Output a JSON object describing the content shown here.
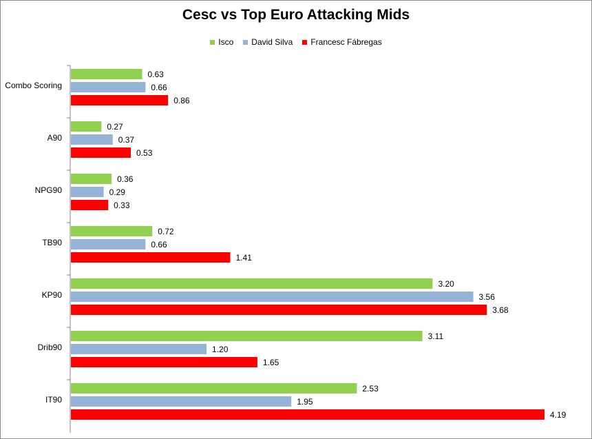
{
  "chart_data": {
    "type": "bar",
    "orientation": "horizontal",
    "title": "Cesc vs Top Euro Attacking Mids",
    "categories": [
      "Combo Scoring",
      "A90",
      "NPG90",
      "TB90",
      "KP90",
      "Drib90",
      "IT90"
    ],
    "series": [
      {
        "name": "Isco",
        "color": "#92d050",
        "values": [
          0.63,
          0.27,
          0.36,
          0.72,
          3.2,
          3.11,
          2.53
        ],
        "labels": [
          "0.63",
          "0.27",
          "0.36",
          "0.72",
          "3.20",
          "3.11",
          "2.53"
        ]
      },
      {
        "name": "David Silva",
        "color": "#95b3d7",
        "values": [
          0.66,
          0.37,
          0.29,
          0.66,
          3.56,
          1.2,
          1.95
        ],
        "labels": [
          "0.66",
          "0.37",
          "0.29",
          "0.66",
          "3.56",
          "1.20",
          "1.95"
        ]
      },
      {
        "name": "Francesc Fábregas",
        "color": "#ff0000",
        "values": [
          0.86,
          0.53,
          0.33,
          1.41,
          3.68,
          1.65,
          4.19
        ],
        "labels": [
          "0.86",
          "0.53",
          "0.33",
          "1.41",
          "3.68",
          "1.65",
          "4.19"
        ]
      }
    ],
    "xlim": [
      0,
      4.19
    ],
    "grid": false,
    "legend_position": "top"
  }
}
